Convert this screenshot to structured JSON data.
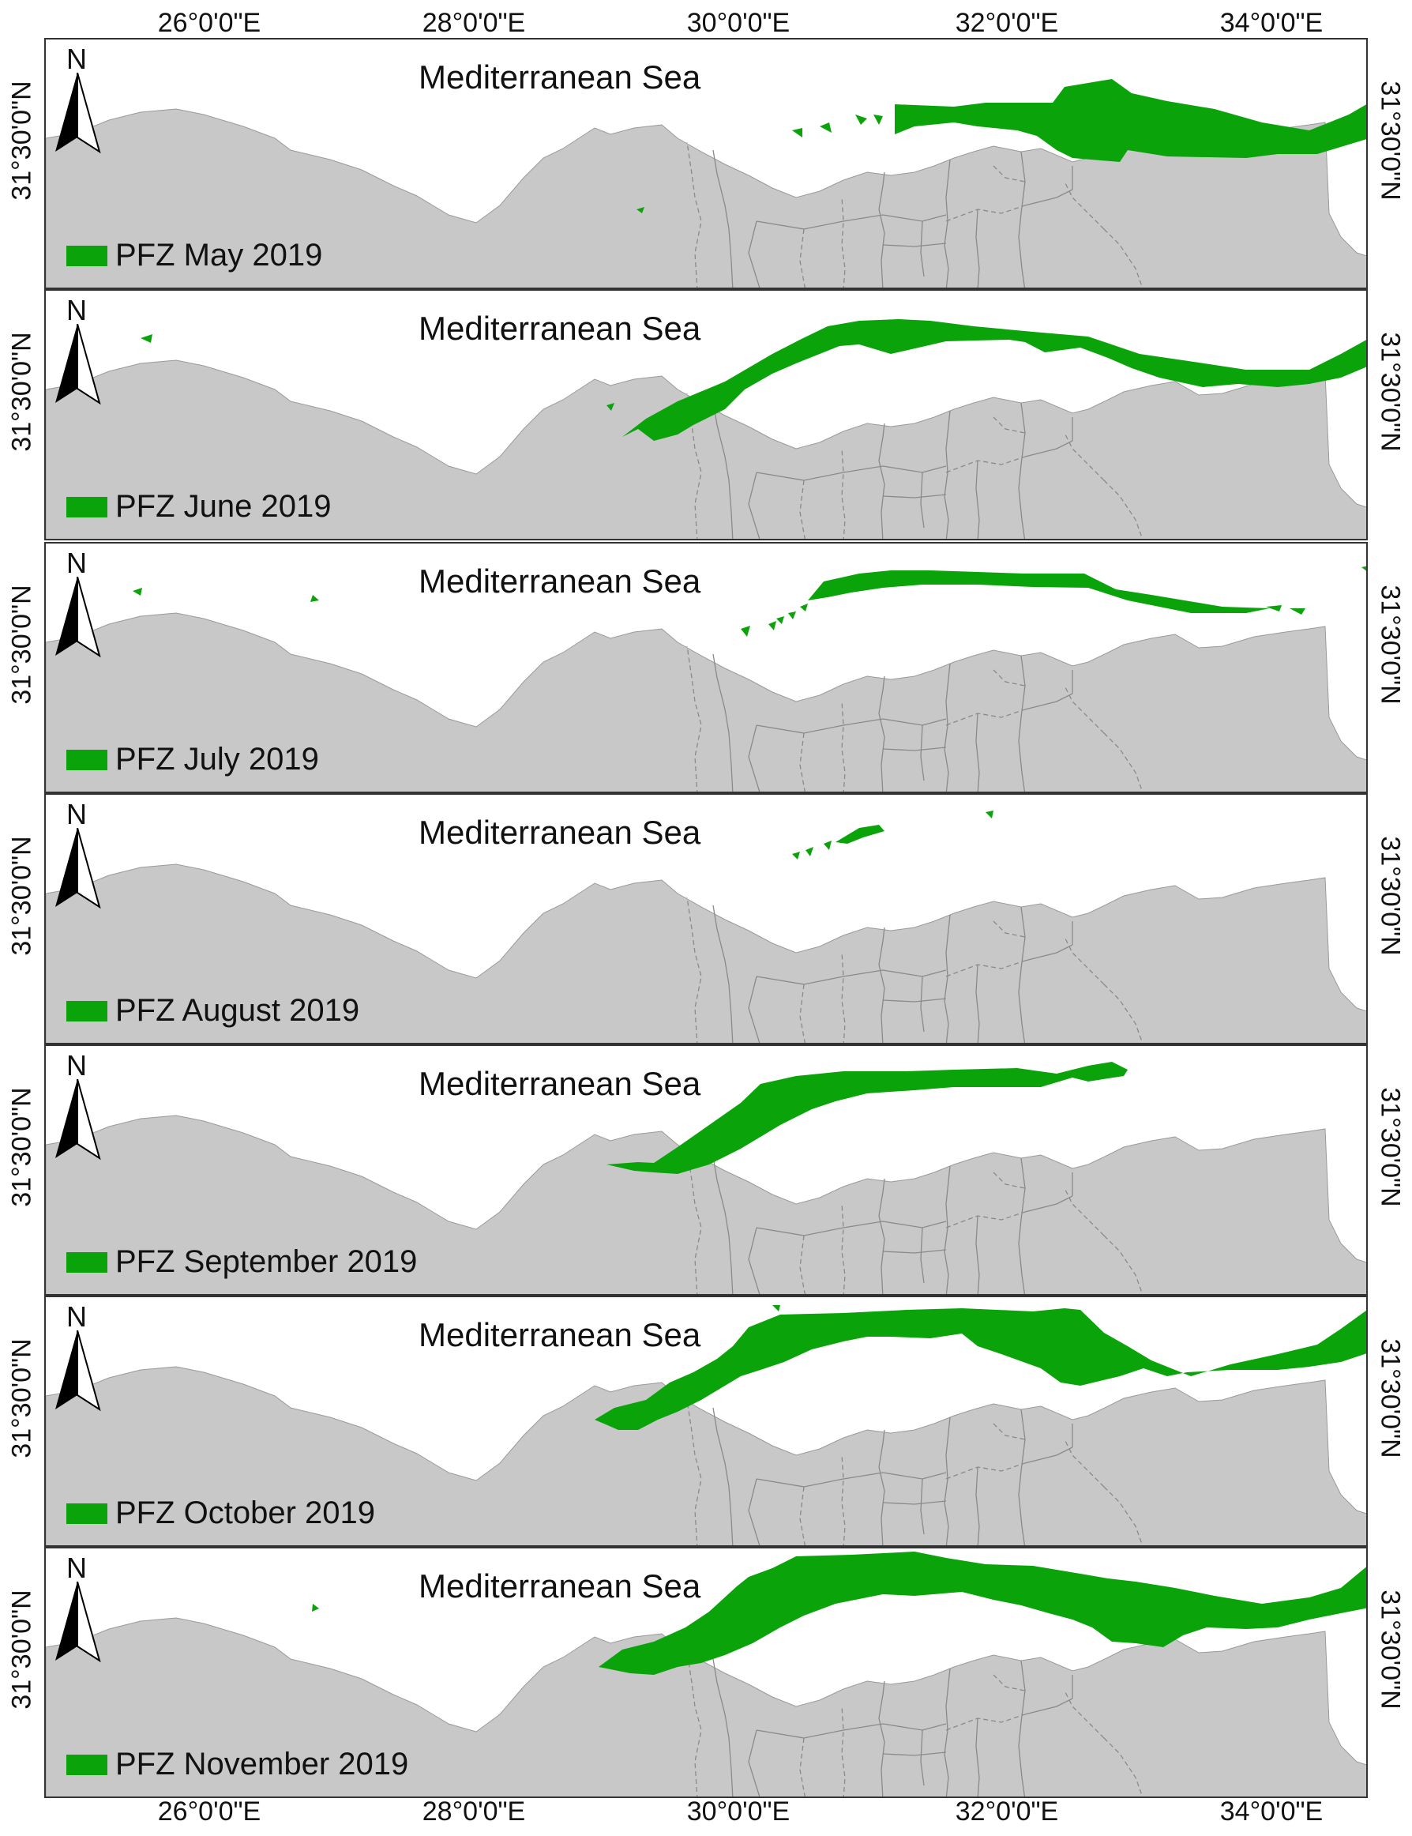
{
  "colors": {
    "pfz": "#0aa30a",
    "land": "#c8c8c8",
    "boundary": "#8a8a8a",
    "sea": "#ffffff"
  },
  "axes": {
    "top_longitudes": [
      "26°0'0\"E",
      "28°0'0\"E",
      "30°0'0\"E",
      "32°0'0\"E",
      "34°0'0\"E"
    ],
    "bottom_longitudes": [
      "26°0'0\"E",
      "28°0'0\"E",
      "30°0'0\"E",
      "32°0'0\"E",
      "34°0'0\"E"
    ],
    "latitude_label": "31°30'0\"N"
  },
  "icons": {
    "north_arrow": "north-arrow-icon",
    "north_letter": "N"
  },
  "panels": [
    {
      "sea_label": "Mediterranean Sea",
      "legend": "PFZ May 2019",
      "month": "May"
    },
    {
      "sea_label": "Mediterranean Sea",
      "legend": "PFZ June 2019",
      "month": "June"
    },
    {
      "sea_label": "Mediterranean Sea",
      "legend": "PFZ July 2019",
      "month": "July"
    },
    {
      "sea_label": "Mediterranean Sea",
      "legend": "PFZ August 2019",
      "month": "August"
    },
    {
      "sea_label": "Mediterranean Sea",
      "legend": "PFZ September 2019",
      "month": "September"
    },
    {
      "sea_label": "Mediterranean Sea",
      "legend": "PFZ October 2019",
      "month": "October"
    },
    {
      "sea_label": "Mediterranean Sea",
      "legend": "PFZ November 2019",
      "month": "November"
    }
  ]
}
